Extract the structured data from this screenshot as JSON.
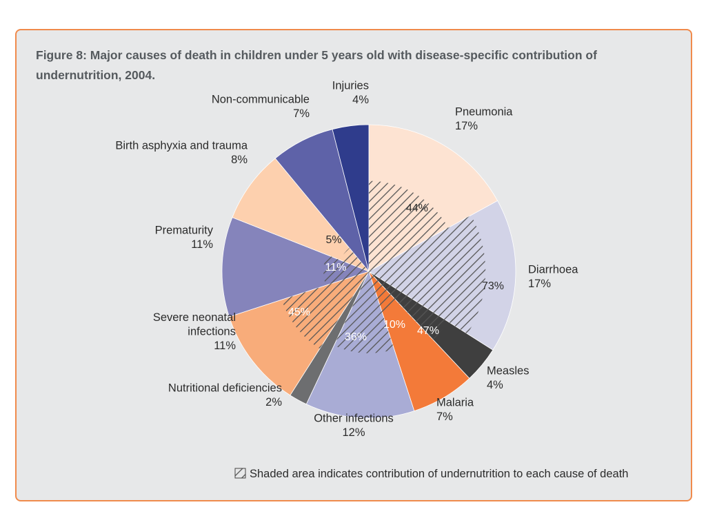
{
  "figure": {
    "title": "Figure 8: Major causes of death in children under 5 years old with disease-specific contribution of undernutrition, 2004."
  },
  "legend": {
    "text": "Shaded area indicates contribution of undernutrition to each cause of death"
  },
  "chart_data": {
    "type": "pie",
    "title": "Figure 8: Major causes of death in children under 5 years old with disease-specific contribution of undernutrition, 2004.",
    "unit": "%",
    "start_direction": "12 o'clock, clockwise",
    "slices": [
      {
        "label": "Pneumonia",
        "value": 17,
        "value_text": "17%",
        "color": "#fde3d2",
        "undernutrition": 44,
        "undernutrition_text": "44%",
        "inner_label_color": "#2b2b2b"
      },
      {
        "label": "Diarrhoea",
        "value": 17,
        "value_text": "17%",
        "color": "#d2d3e7",
        "undernutrition": 73,
        "undernutrition_text": "73%",
        "inner_label_color": "#2b2b2b"
      },
      {
        "label": "Measles",
        "value": 4,
        "value_text": "4%",
        "color": "#3f3f3f",
        "undernutrition": 47,
        "undernutrition_text": "47%",
        "inner_label_color": "#ffffff"
      },
      {
        "label": "Malaria",
        "value": 7,
        "value_text": "7%",
        "color": "#f37a39",
        "undernutrition": 10,
        "undernutrition_text": "10%",
        "inner_label_color": "#ffffff"
      },
      {
        "label": "Other infections",
        "value": 12,
        "value_text": "12%",
        "color": "#a9acd5",
        "undernutrition": 36,
        "undernutrition_text": "36%",
        "inner_label_color": "#ffffff"
      },
      {
        "label": "Nutritional deficiencies",
        "value": 2,
        "value_text": "2%",
        "color": "#6d6e70",
        "undernutrition": null,
        "undernutrition_text": "",
        "inner_label_color": "#ffffff"
      },
      {
        "label": "Severe neonatal infections",
        "value": 11,
        "value_text": "11%",
        "color": "#f8ac7a",
        "undernutrition": 45,
        "undernutrition_text": "45%",
        "inner_label_color": "#ffffff"
      },
      {
        "label": "Prematurity",
        "value": 11,
        "value_text": "11%",
        "color": "#8584bb",
        "undernutrition": 11,
        "undernutrition_text": "11%",
        "inner_label_color": "#ffffff"
      },
      {
        "label": "Birth asphyxia and trauma",
        "value": 8,
        "value_text": "8%",
        "color": "#fdd0ae",
        "undernutrition": 5,
        "undernutrition_text": "5%",
        "inner_label_color": "#2b2b2b"
      },
      {
        "label": "Non-communicable",
        "value": 7,
        "value_text": "7%",
        "color": "#5e62a8",
        "undernutrition": null,
        "undernutrition_text": "",
        "inner_label_color": "#ffffff"
      },
      {
        "label": "Injuries",
        "value": 4,
        "value_text": "4%",
        "color": "#2f3c8c",
        "undernutrition": null,
        "undernutrition_text": "",
        "inner_label_color": "#ffffff"
      }
    ]
  }
}
